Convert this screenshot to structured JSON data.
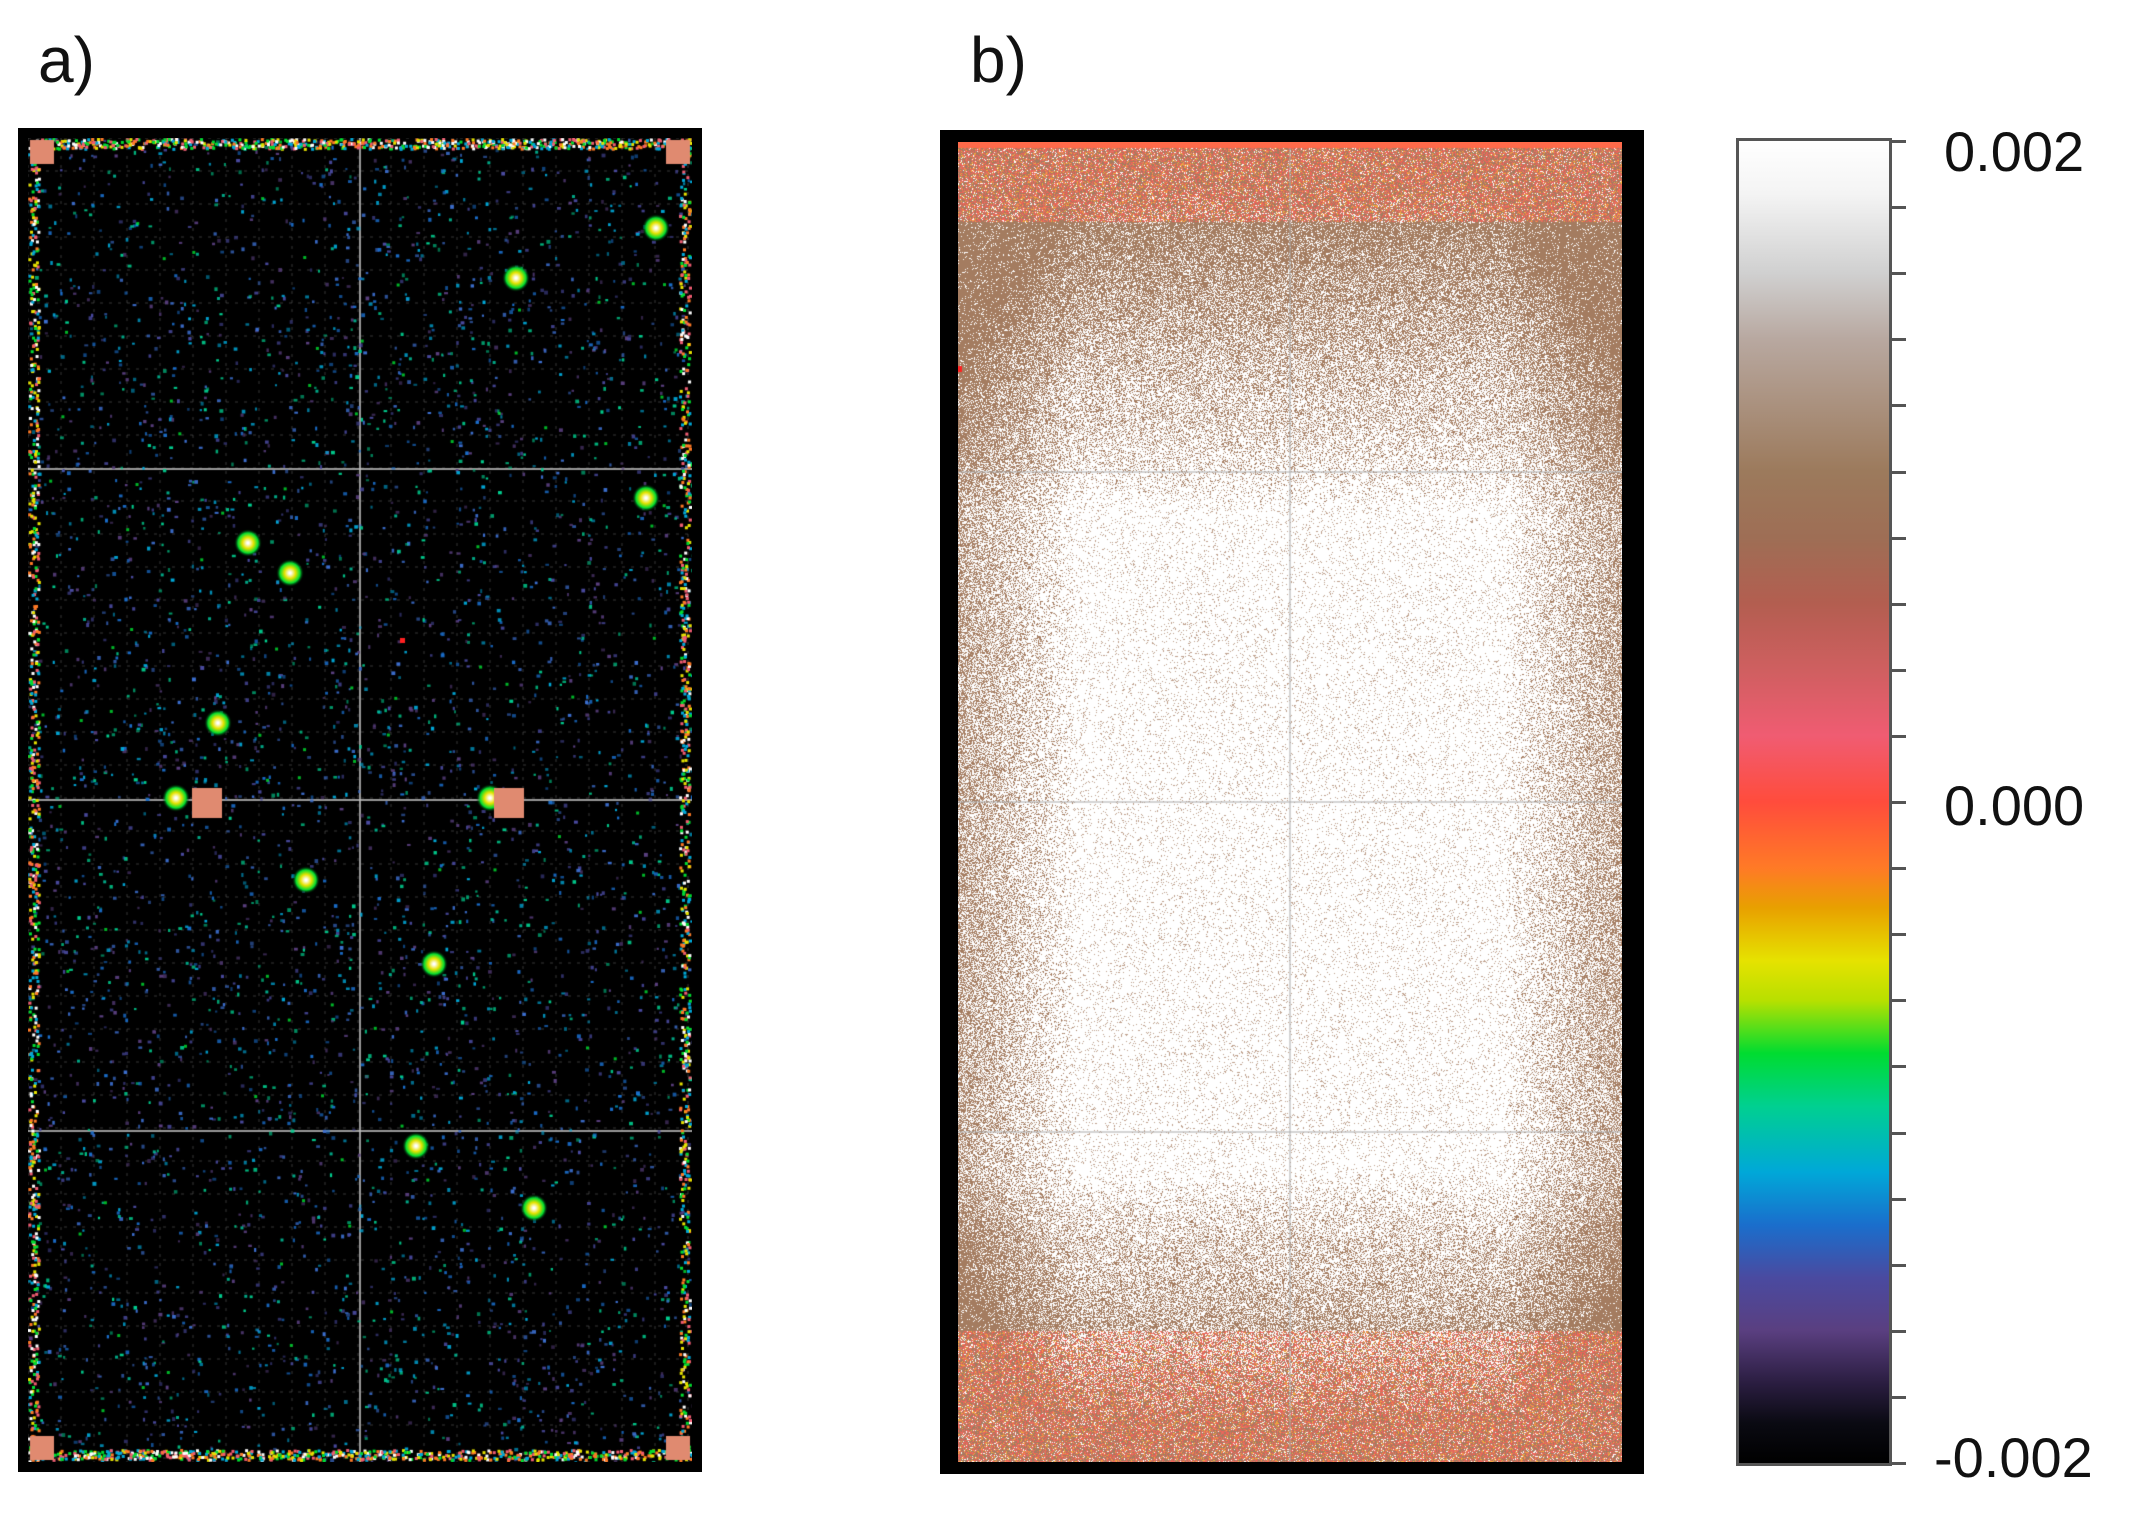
{
  "panels": [
    {
      "label": "a)",
      "description_icon": "strain-map-dark"
    },
    {
      "label": "b)",
      "description_icon": "strain-map-light"
    }
  ],
  "colorbar": {
    "max_label": "0.002",
    "mid_label": "0.000",
    "min_label": "-0.002",
    "colors": {
      "top": "#ffffff",
      "brown": "#9c7a5c",
      "pink": "#f05c72",
      "red": "#ff4c3c",
      "orange": "#ff7a26",
      "yellow": "#e6e200",
      "green": "#00dc30",
      "cyan": "#00a8d8",
      "blue": "#1a6ecc",
      "purple": "#5a3f80",
      "bottom": "#000000"
    }
  }
}
